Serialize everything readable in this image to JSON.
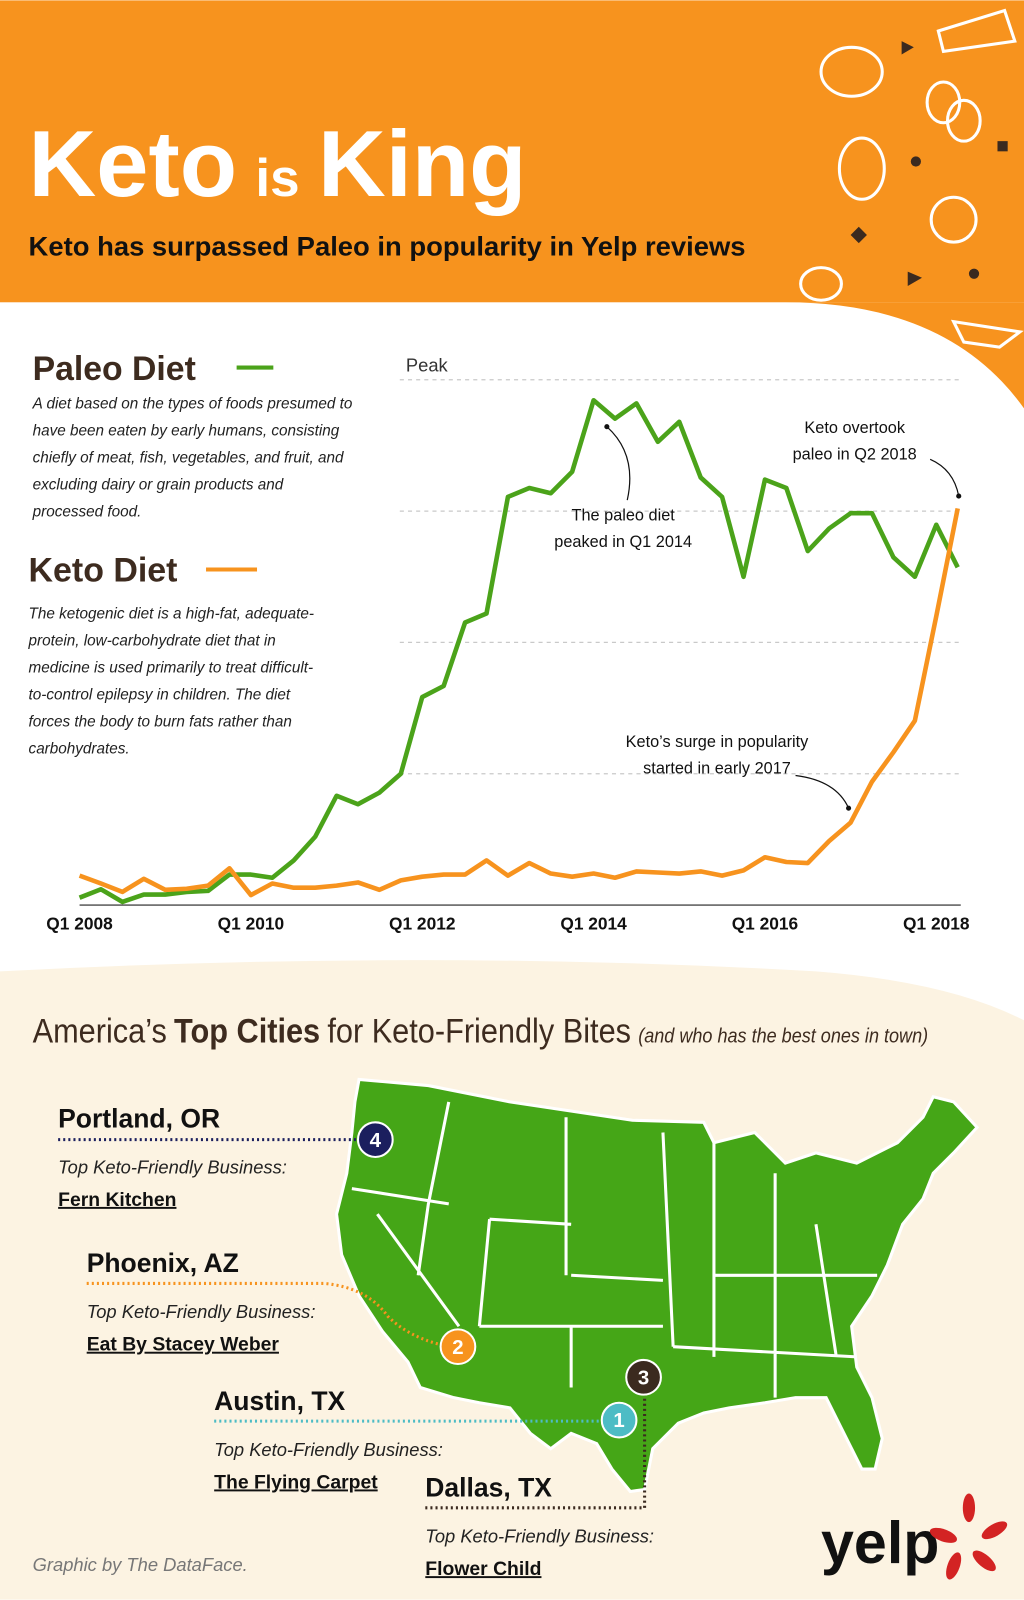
{
  "header": {
    "title": [
      "Keto",
      "is",
      "King"
    ],
    "subtitle": "Keto has surpassed Paleo in popularity in Yelp reviews"
  },
  "chart_data": {
    "type": "line",
    "categories": [
      "Q1 2008",
      null,
      null,
      null,
      null,
      null,
      null,
      null,
      "Q1 2010",
      null,
      null,
      null,
      null,
      null,
      null,
      null,
      "Q1 2012",
      null,
      null,
      null,
      null,
      null,
      null,
      null,
      "Q1 2014",
      null,
      null,
      null,
      null,
      null,
      null,
      null,
      "Q1 2016",
      null,
      null,
      null,
      null,
      null,
      null,
      null,
      "Q1 2018",
      null
    ],
    "series": [
      {
        "name": "Paleo Diet",
        "color": "#4BA31A",
        "description": [
          "A diet based on the types of foods presumed to",
          "have been eaten by early humans, consisting",
          "chiefly of meat, fish, vegetables, and fruit, and",
          "excluding dairy or grain products and",
          "processed food."
        ],
        "values": [
          1.4,
          3,
          0.6,
          2,
          2,
          2.5,
          2.7,
          5.8,
          5.8,
          5.2,
          8.5,
          13,
          20.8,
          19.2,
          21.4,
          25,
          39.6,
          41.7,
          53.8,
          55.5,
          77.7,
          79.4,
          78.4,
          82.5,
          96.1,
          92.6,
          95.5,
          88.2,
          92,
          81.4,
          77.7,
          62.5,
          81,
          79.4,
          67.4,
          71.7,
          74.6,
          74.6,
          66.2,
          62.5,
          72.4,
          64.3
        ]
      },
      {
        "name": "Keto Diet",
        "color": "#F7931E",
        "description": [
          "The ketogenic diet is a high-fat, adequate-",
          "protein, low-carbohydrate diet that in",
          "medicine is used primarily to treat difficult-",
          "to-control epilepsy in children. The diet",
          "forces the body to burn fats rather than",
          "carbohydrates."
        ],
        "values": [
          5.6,
          4.1,
          2.5,
          5,
          2.9,
          3.1,
          3.7,
          7,
          1.9,
          4.1,
          3.3,
          3.3,
          3.7,
          4.3,
          2.9,
          4.7,
          5.4,
          5.8,
          5.8,
          8.5,
          5.6,
          8,
          6,
          5.4,
          6,
          5.2,
          6.4,
          6.2,
          6,
          6.4,
          5.6,
          6.6,
          9.1,
          8.2,
          8,
          12.2,
          15.7,
          23.5,
          29.1,
          35.1,
          55,
          75.5
        ]
      }
    ],
    "ylim": [
      0,
      100
    ],
    "yticks": [
      {
        "value": 25,
        "label": null
      },
      {
        "value": 50,
        "label": null
      },
      {
        "value": 75,
        "label": null
      },
      {
        "value": 100,
        "label": "Peak"
      }
    ],
    "grid": true,
    "annotations": [
      [
        "The paleo diet",
        "peaked in Q1 2014"
      ],
      [
        "Keto overtook",
        "paleo in Q2 2018"
      ],
      [
        "Keto’s surge in popularity",
        "started in early 2017"
      ]
    ]
  },
  "map": {
    "title": [
      "America’s",
      "Top Cities",
      "for Keto-Friendly Bites",
      "(and who has the best ones in town)"
    ],
    "cities": [
      {
        "rank": 4,
        "name": "Portland, OR",
        "label": "Top Keto-Friendly Business:",
        "business": "Fern Kitchen",
        "color": "#1B1F5E"
      },
      {
        "rank": 2,
        "name": "Phoenix, AZ",
        "label": "Top Keto-Friendly Business:",
        "business": "Eat By Stacey Weber",
        "color": "#F7931E"
      },
      {
        "rank": 1,
        "name": "Austin, TX",
        "label": "Top Keto-Friendly Business:",
        "business": "The Flying Carpet",
        "color": "#4DBCC5"
      },
      {
        "rank": 3,
        "name": "Dallas, TX",
        "label": "Top Keto-Friendly Business:",
        "business": "Flower Child",
        "color": "#3B2A1F"
      }
    ]
  },
  "footer": {
    "credit": "Graphic by The DataFace.",
    "logo": "yelp"
  }
}
